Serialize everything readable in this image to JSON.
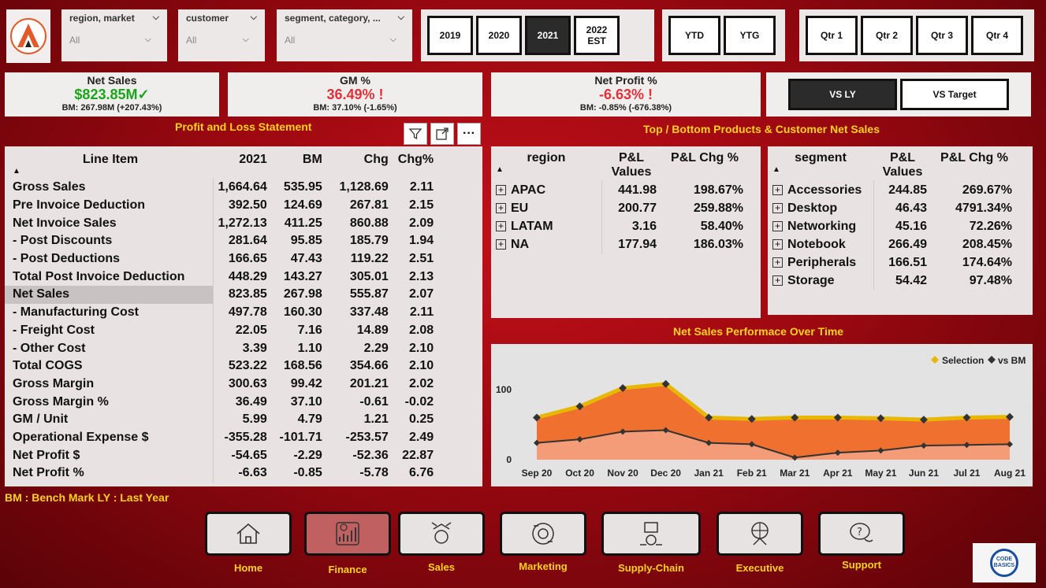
{
  "filters": [
    {
      "label": "region, market",
      "value": "All"
    },
    {
      "label": "customer",
      "value": "All"
    },
    {
      "label": "segment, category, ...",
      "value": "All"
    }
  ],
  "years": [
    "2019",
    "2020",
    "2021",
    "2022 EST"
  ],
  "selected_year": "2021",
  "periods": [
    "YTD",
    "YTG"
  ],
  "quarters": [
    "Qtr 1",
    "Qtr 2",
    "Qtr 3",
    "Qtr 4"
  ],
  "kpis": {
    "net_sales": {
      "title": "Net Sales",
      "value": "$823.85M",
      "bm": "BM: 267.98M (+207.43%)"
    },
    "gm": {
      "title": "GM %",
      "value": "36.49%",
      "bm": "BM: 37.10% (-1.65%)"
    },
    "net_profit": {
      "title": "Net Profit %",
      "value": "-6.63%",
      "bm": "BM: -0.85% (-676.38%)"
    }
  },
  "compare": {
    "vs_ly": "VS LY",
    "vs_target": "VS Target"
  },
  "pl_title": "Profit and Loss Statement",
  "pl_table": {
    "headers": [
      "Line Item",
      "2021",
      "BM",
      "Chg",
      "Chg%"
    ],
    "rows": [
      [
        "Gross Sales",
        "1,664.64",
        "535.95",
        "1,128.69",
        "2.11"
      ],
      [
        "Pre Invoice Deduction",
        "392.50",
        "124.69",
        "267.81",
        "2.15"
      ],
      [
        "Net Invoice Sales",
        "1,272.13",
        "411.25",
        "860.88",
        "2.09"
      ],
      [
        "- Post Discounts",
        "281.64",
        "95.85",
        "185.79",
        "1.94"
      ],
      [
        "- Post Deductions",
        "166.65",
        "47.43",
        "119.22",
        "2.51"
      ],
      [
        "Total Post Invoice Deduction",
        "448.29",
        "143.27",
        "305.01",
        "2.13"
      ],
      [
        "Net Sales",
        "823.85",
        "267.98",
        "555.87",
        "2.07"
      ],
      [
        "- Manufacturing Cost",
        "497.78",
        "160.30",
        "337.48",
        "2.11"
      ],
      [
        "- Freight Cost",
        "22.05",
        "7.16",
        "14.89",
        "2.08"
      ],
      [
        "- Other Cost",
        "3.39",
        "1.10",
        "2.29",
        "2.10"
      ],
      [
        "Total COGS",
        "523.22",
        "168.56",
        "354.66",
        "2.10"
      ],
      [
        "Gross Margin",
        "300.63",
        "99.42",
        "201.21",
        "2.02"
      ],
      [
        "Gross Margin %",
        "36.49",
        "37.10",
        "-0.61",
        "-0.02"
      ],
      [
        "GM / Unit",
        "5.99",
        "4.79",
        "1.21",
        "0.25"
      ],
      [
        "Operational Expense $",
        "-355.28",
        "-101.71",
        "-253.57",
        "2.49"
      ],
      [
        "Net Profit $",
        "-54.65",
        "-2.29",
        "-52.36",
        "22.87"
      ],
      [
        "Net Profit %",
        "-6.63",
        "-0.85",
        "-5.78",
        "6.76"
      ]
    ]
  },
  "tb_title": "Top / Bottom Products & Customer Net Sales",
  "region_table": {
    "headers": [
      "region",
      "P&L Values",
      "P&L Chg %"
    ],
    "rows": [
      [
        "APAC",
        "441.98",
        "198.67%"
      ],
      [
        "EU",
        "200.77",
        "259.88%"
      ],
      [
        "LATAM",
        "3.16",
        "58.40%"
      ],
      [
        "NA",
        "177.94",
        "186.03%"
      ]
    ]
  },
  "segment_table": {
    "headers": [
      "segment",
      "P&L Values",
      "P&L Chg %"
    ],
    "rows": [
      [
        "Accessories",
        "244.85",
        "269.67%"
      ],
      [
        "Desktop",
        "46.43",
        "4791.34%"
      ],
      [
        "Networking",
        "45.16",
        "72.26%"
      ],
      [
        "Notebook",
        "266.49",
        "208.45%"
      ],
      [
        "Peripherals",
        "166.51",
        "174.64%"
      ],
      [
        "Storage",
        "54.42",
        "97.48%"
      ]
    ]
  },
  "chart_title": "Net Sales Performace Over Time",
  "chart_data": {
    "type": "area",
    "x": [
      "Sep 20",
      "Oct 20",
      "Nov 20",
      "Dec 20",
      "Jan 21",
      "Feb 21",
      "Mar 21",
      "Apr 21",
      "May 21",
      "Jun 21",
      "Jul 21",
      "Aug 21"
    ],
    "series": [
      {
        "name": "Selection",
        "values": [
          60,
          76,
          102,
          108,
          60,
          58,
          60,
          60,
          59,
          57,
          60,
          61
        ]
      },
      {
        "name": "vs BM",
        "values": [
          24,
          29,
          40,
          42,
          24,
          22,
          3,
          10,
          13,
          20,
          21,
          22
        ]
      }
    ],
    "yticks": [
      0,
      100
    ],
    "ylim": [
      0,
      120
    ],
    "colors": {
      "selection_fill": "#f07030",
      "selection_line": "#e8b800",
      "bm_fill": "#f4a080",
      "bm_line": "#333333"
    }
  },
  "bm_note": "BM : Bench Mark LY : Last Year",
  "nav": [
    "Home",
    "Finance",
    "Sales",
    "Marketing",
    "Supply-Chain",
    "Executive",
    "Support"
  ],
  "nav_selected": "Finance",
  "brand_badge": "CODE BASICS"
}
